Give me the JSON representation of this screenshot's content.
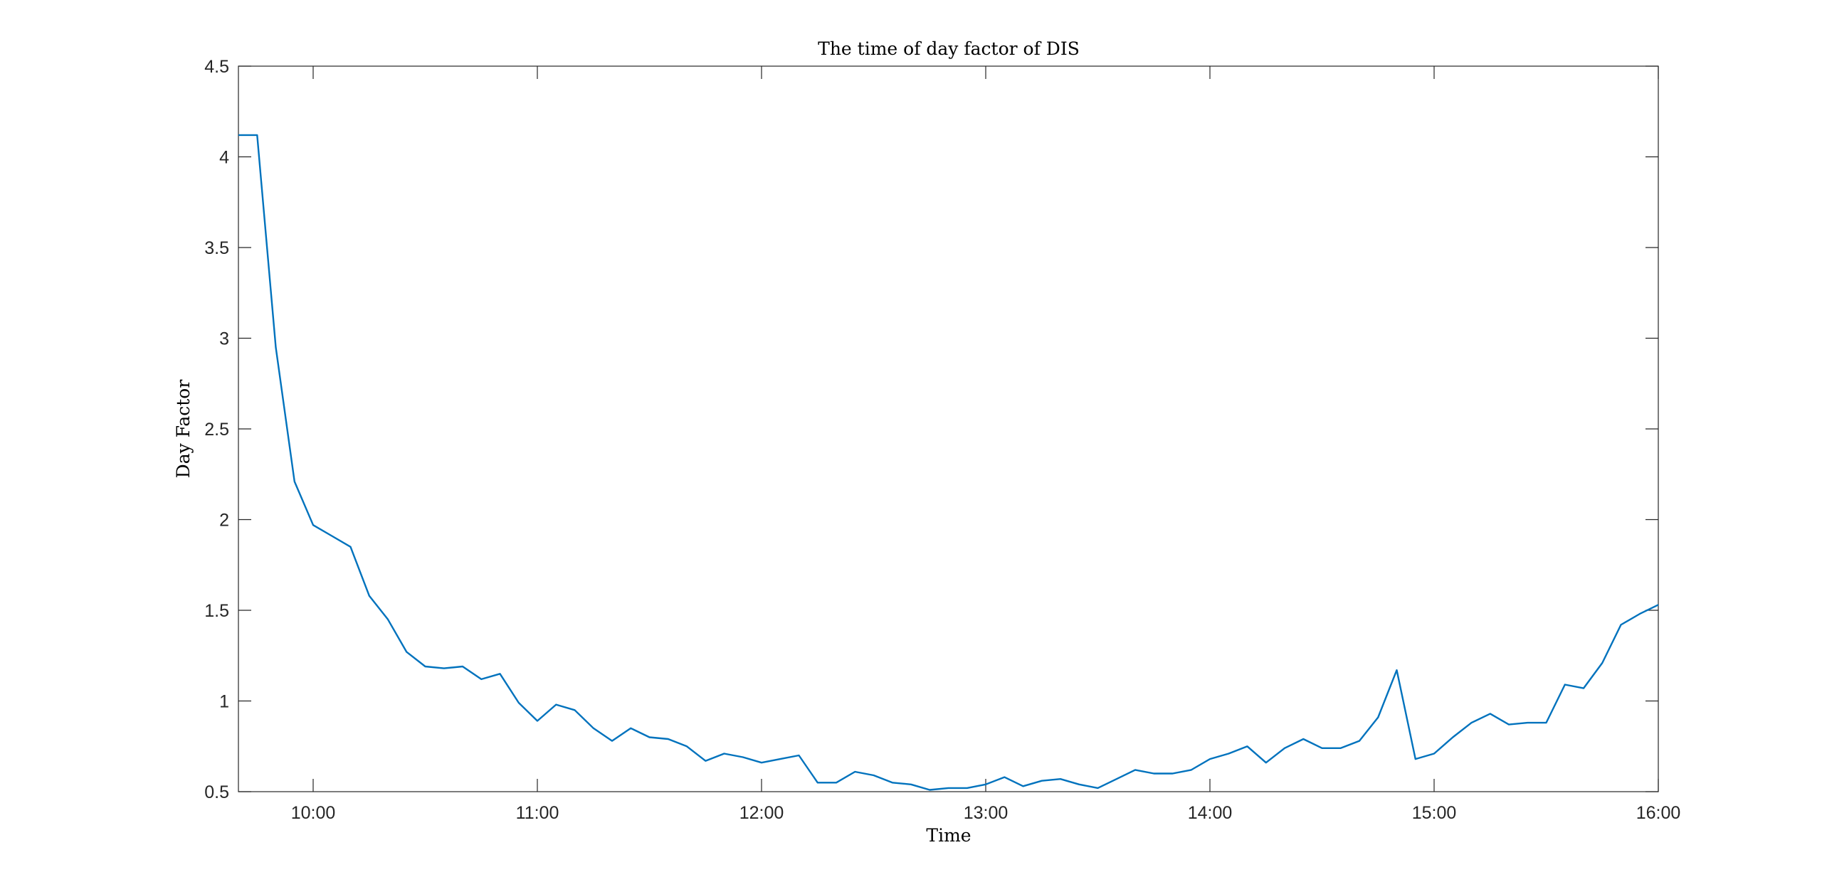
{
  "chart_data": {
    "type": "line",
    "title": "The time of day factor of DIS",
    "xlabel": "Time",
    "ylabel": "Day Factor",
    "xlim": [
      "09:40",
      "16:00"
    ],
    "ylim": [
      0.5,
      4.5
    ],
    "x_ticks": [
      "10:00",
      "11:00",
      "12:00",
      "13:00",
      "14:00",
      "15:00",
      "16:00"
    ],
    "y_ticks": [
      "0.5",
      "1",
      "1.5",
      "2",
      "2.5",
      "3",
      "3.5",
      "4",
      "4.5"
    ],
    "grid": false,
    "color": "#0072bd",
    "x": [
      "09:40",
      "09:45",
      "09:50",
      "09:55",
      "10:00",
      "10:05",
      "10:10",
      "10:15",
      "10:20",
      "10:25",
      "10:30",
      "10:35",
      "10:40",
      "10:45",
      "10:50",
      "10:55",
      "11:00",
      "11:05",
      "11:10",
      "11:15",
      "11:20",
      "11:25",
      "11:30",
      "11:35",
      "11:40",
      "11:45",
      "11:50",
      "11:55",
      "12:00",
      "12:05",
      "12:10",
      "12:15",
      "12:20",
      "12:25",
      "12:30",
      "12:35",
      "12:40",
      "12:45",
      "12:50",
      "12:55",
      "13:00",
      "13:05",
      "13:10",
      "13:15",
      "13:20",
      "13:25",
      "13:30",
      "13:35",
      "13:40",
      "13:45",
      "13:50",
      "13:55",
      "14:00",
      "14:05",
      "14:10",
      "14:15",
      "14:20",
      "14:25",
      "14:30",
      "14:35",
      "14:40",
      "14:45",
      "14:50",
      "14:55",
      "15:00",
      "15:05",
      "15:10",
      "15:15",
      "15:20",
      "15:25",
      "15:30",
      "15:35",
      "15:40",
      "15:45",
      "15:50",
      "15:55",
      "16:00"
    ],
    "y": [
      4.12,
      4.12,
      2.95,
      2.21,
      1.97,
      1.91,
      1.85,
      1.58,
      1.45,
      1.27,
      1.19,
      1.18,
      1.19,
      1.12,
      1.15,
      0.99,
      0.89,
      0.98,
      0.95,
      0.85,
      0.78,
      0.85,
      0.8,
      0.79,
      0.75,
      0.67,
      0.71,
      0.69,
      0.66,
      0.68,
      0.7,
      0.55,
      0.55,
      0.61,
      0.59,
      0.55,
      0.54,
      0.51,
      0.52,
      0.52,
      0.54,
      0.58,
      0.53,
      0.56,
      0.57,
      0.54,
      0.52,
      0.57,
      0.62,
      0.6,
      0.6,
      0.62,
      0.68,
      0.71,
      0.75,
      0.66,
      0.74,
      0.79,
      0.74,
      0.74,
      0.78,
      0.91,
      1.17,
      0.68,
      0.71,
      0.8,
      0.88,
      0.93,
      0.87,
      0.88,
      0.88,
      1.09,
      1.07,
      1.21,
      1.42,
      1.48,
      1.53
    ]
  }
}
